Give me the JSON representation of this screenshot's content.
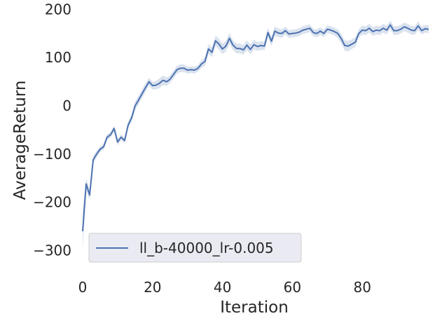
{
  "chart_data": {
    "type": "line",
    "xlabel": "Iteration",
    "ylabel": "AverageReturn",
    "xlim": [
      0,
      99
    ],
    "ylim": [
      -340,
      205
    ],
    "xticks": [
      0,
      20,
      40,
      60,
      80
    ],
    "xtick_labels": [
      "0",
      "20",
      "40",
      "60",
      "80"
    ],
    "yticks": [
      -300,
      -200,
      -100,
      0,
      100,
      200
    ],
    "ytick_labels": [
      "−300",
      "−200",
      "−100",
      "0",
      "100",
      "200"
    ],
    "grid": false,
    "legend_placement": "lower-left",
    "series": [
      {
        "name": "ll_b-40000_lr-0.005",
        "color": "#4c72b0",
        "band_color": "#4c72b0",
        "x": [
          0,
          1,
          2,
          3,
          4,
          5,
          6,
          7,
          8,
          9,
          10,
          11,
          12,
          13,
          14,
          15,
          16,
          17,
          18,
          19,
          20,
          21,
          22,
          23,
          24,
          25,
          26,
          27,
          28,
          29,
          30,
          31,
          32,
          33,
          34,
          35,
          36,
          37,
          38,
          39,
          40,
          41,
          42,
          43,
          44,
          45,
          46,
          47,
          48,
          49,
          50,
          51,
          52,
          53,
          54,
          55,
          56,
          57,
          58,
          59,
          60,
          61,
          62,
          63,
          64,
          65,
          66,
          67,
          68,
          69,
          70,
          71,
          72,
          73,
          74,
          75,
          76,
          77,
          78,
          79,
          80,
          81,
          82,
          83,
          84,
          85,
          86,
          87,
          88,
          89,
          90,
          91,
          92,
          93,
          94,
          95,
          96,
          97,
          98,
          99
        ],
        "y": [
          -260,
          -162,
          -185,
          -112,
          -100,
          -90,
          -85,
          -65,
          -60,
          -47,
          -75,
          -65,
          -72,
          -40,
          -25,
          0,
          12,
          25,
          38,
          50,
          42,
          43,
          47,
          53,
          50,
          55,
          65,
          75,
          78,
          78,
          74,
          75,
          74,
          78,
          87,
          92,
          118,
          111,
          135,
          128,
          118,
          124,
          140,
          126,
          119,
          119,
          116,
          126,
          117,
          127,
          123,
          125,
          124,
          152,
          134,
          155,
          151,
          150,
          156,
          149,
          150,
          151,
          153,
          157,
          159,
          161,
          152,
          150,
          155,
          150,
          159,
          157,
          154,
          150,
          139,
          125,
          124,
          128,
          132,
          150,
          157,
          156,
          161,
          154,
          157,
          156,
          161,
          157,
          168,
          156,
          156,
          159,
          164,
          161,
          157,
          156,
          166,
          156,
          160,
          159
        ],
        "band_halfwidth": [
          40,
          12,
          10,
          8,
          7,
          6,
          6,
          6,
          6,
          7,
          7,
          6,
          6,
          7,
          8,
          9,
          9,
          9,
          9,
          8,
          8,
          9,
          10,
          10,
          9,
          8,
          8,
          8,
          8,
          8,
          7,
          7,
          7,
          7,
          8,
          9,
          10,
          10,
          11,
          11,
          11,
          11,
          11,
          10,
          10,
          10,
          10,
          10,
          10,
          10,
          9,
          9,
          9,
          10,
          10,
          10,
          9,
          9,
          8,
          8,
          8,
          8,
          8,
          8,
          8,
          8,
          8,
          8,
          8,
          8,
          8,
          8,
          8,
          9,
          10,
          11,
          11,
          10,
          10,
          9,
          9,
          9,
          9,
          9,
          9,
          9,
          9,
          9,
          9,
          9,
          9,
          9,
          9,
          9,
          9,
          9,
          9,
          8,
          8,
          8
        ]
      }
    ]
  }
}
